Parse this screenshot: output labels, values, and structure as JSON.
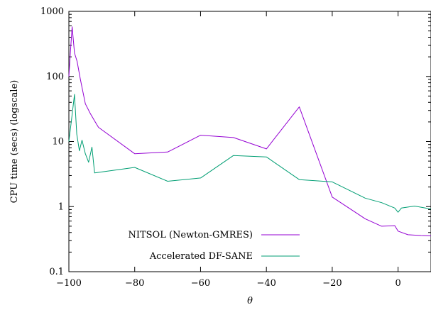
{
  "chart_data": {
    "type": "line",
    "title": "",
    "xlabel": "θ",
    "ylabel": "CPU time (secs) (logscale)",
    "xlim": [
      -100,
      10
    ],
    "ylim": [
      0.1,
      1000
    ],
    "yscale": "log",
    "grid": false,
    "legend_position": "bottom-left",
    "x_ticks": [
      -100,
      -80,
      -60,
      -40,
      -20,
      0
    ],
    "x_tick_labels": [
      "−100",
      "−80",
      "−60",
      "−40",
      "−20",
      "0"
    ],
    "y_ticks": [
      0.1,
      1,
      10,
      100,
      1000
    ],
    "y_tick_labels": [
      "0.1",
      "1",
      "10",
      "100",
      "1000"
    ],
    "series": [
      {
        "name": "NITSOL (Newton-GMRES)",
        "color": "#9400d3",
        "points": [
          [
            -100,
            100
          ],
          [
            -99.5,
            250
          ],
          [
            -99,
            580
          ],
          [
            -98.3,
            230
          ],
          [
            -97.5,
            170
          ],
          [
            -96.5,
            90
          ],
          [
            -95,
            38
          ],
          [
            -93.5,
            27
          ],
          [
            -92,
            20
          ],
          [
            -91,
            16.5
          ],
          [
            -80,
            6.5
          ],
          [
            -70,
            6.9
          ],
          [
            -60,
            12.5
          ],
          [
            -50,
            11.5
          ],
          [
            -40,
            7.7
          ],
          [
            -30,
            34
          ],
          [
            -20,
            1.4
          ],
          [
            -10,
            0.65
          ],
          [
            -5,
            0.5
          ],
          [
            -1,
            0.51
          ],
          [
            0,
            0.42
          ],
          [
            3,
            0.37
          ],
          [
            7,
            0.36
          ],
          [
            10,
            0.355
          ]
        ]
      },
      {
        "name": "Accelerated DF-SANE",
        "color": "#009e73",
        "points": [
          [
            -100,
            10
          ],
          [
            -99,
            26
          ],
          [
            -98.3,
            53
          ],
          [
            -97.6,
            13
          ],
          [
            -96.8,
            7.2
          ],
          [
            -96,
            10.5
          ],
          [
            -95,
            6.5
          ],
          [
            -94,
            4.8
          ],
          [
            -93,
            8.2
          ],
          [
            -92.2,
            3.3
          ],
          [
            -80,
            4.0
          ],
          [
            -70,
            2.45
          ],
          [
            -60,
            2.75
          ],
          [
            -50,
            6.1
          ],
          [
            -40,
            5.8
          ],
          [
            -30,
            2.6
          ],
          [
            -20,
            2.4
          ],
          [
            -10,
            1.35
          ],
          [
            -5,
            1.15
          ],
          [
            -1,
            0.95
          ],
          [
            0,
            0.82
          ],
          [
            1,
            0.95
          ],
          [
            5,
            1.02
          ],
          [
            10,
            0.92
          ]
        ]
      }
    ]
  }
}
